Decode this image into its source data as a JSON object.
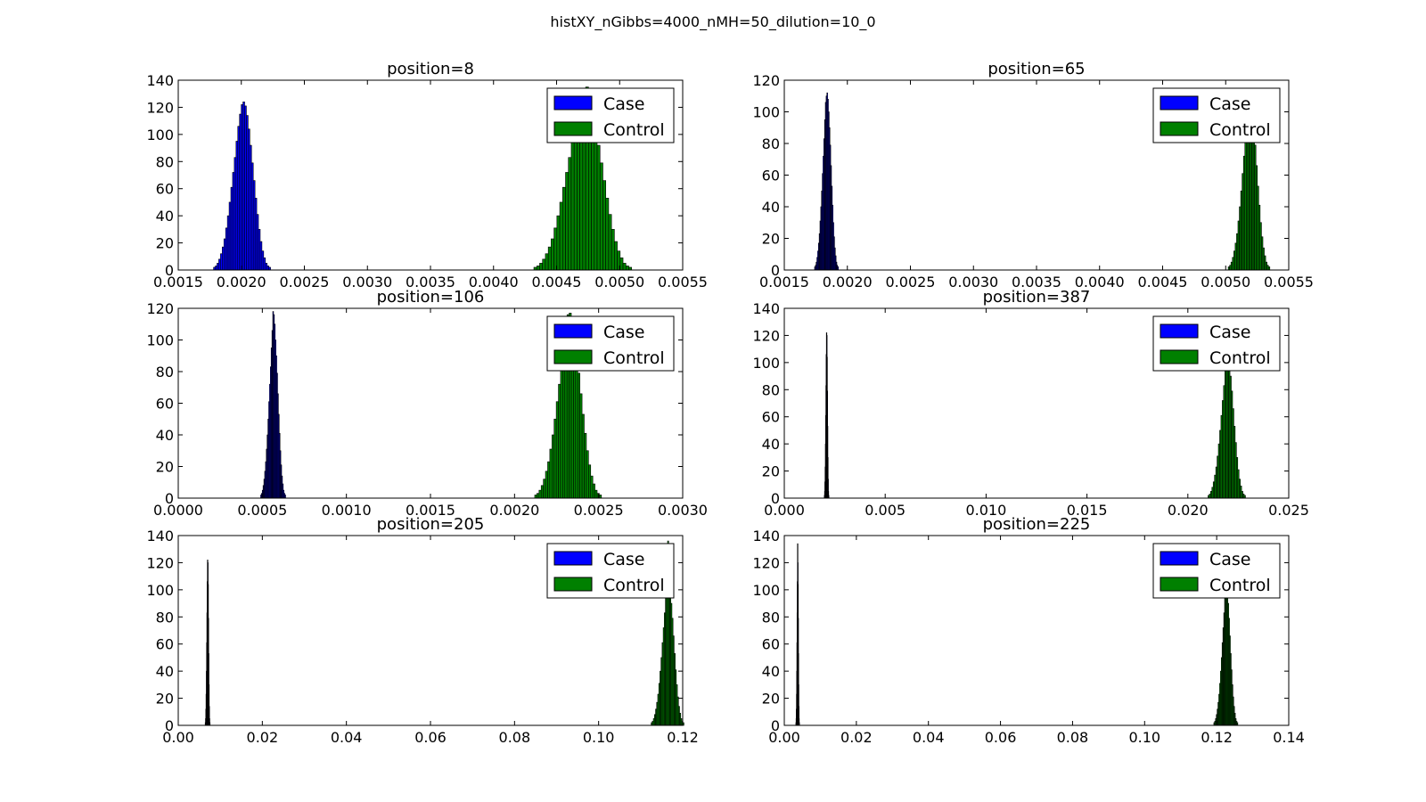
{
  "figure": {
    "title": "histXY_nGibbs=4000_nMH=50_dilution=10_0"
  },
  "colors": {
    "case": "#0000ff",
    "control": "#008000",
    "edge": "#000000"
  },
  "chart_data": [
    {
      "type": "histogram",
      "title": "position=8",
      "xlim": [
        0.0015,
        0.0055
      ],
      "ylim": [
        0,
        140
      ],
      "xticks": [
        0.0015,
        0.002,
        0.0025,
        0.003,
        0.0035,
        0.004,
        0.0045,
        0.005,
        0.0055
      ],
      "xtick_labels": [
        "0.0015",
        "0.0020",
        "0.0025",
        "0.0030",
        "0.0035",
        "0.0040",
        "0.0045",
        "0.0050",
        "0.0055"
      ],
      "yticks": [
        0,
        20,
        40,
        60,
        80,
        100,
        120,
        140
      ],
      "ytick_labels": [
        "0",
        "20",
        "40",
        "60",
        "80",
        "100",
        "120",
        "140"
      ],
      "legend": {
        "placement": "top-right",
        "entries": [
          "Case",
          "Control"
        ]
      },
      "series": [
        {
          "name": "Case",
          "color": "#0000ff",
          "x_start": 0.00178,
          "bin_width": 1.37e-05,
          "counts": [
            2,
            3,
            5,
            8,
            12,
            17,
            23,
            31,
            40,
            50,
            61,
            72,
            83,
            95,
            106,
            115,
            122,
            124,
            121,
            114,
            104,
            92,
            79,
            66,
            53,
            41,
            30,
            21,
            14,
            9,
            5,
            3,
            2
          ]
        },
        {
          "name": "Control",
          "color": "#008000",
          "x_start": 0.00432,
          "bin_width": 2.28e-05,
          "counts": [
            2,
            3,
            5,
            8,
            12,
            17,
            23,
            31,
            40,
            50,
            61,
            72,
            83,
            95,
            106,
            115,
            122,
            124,
            135,
            120,
            114,
            104,
            92,
            79,
            66,
            53,
            41,
            30,
            21,
            14,
            9,
            5,
            3,
            2
          ]
        }
      ]
    },
    {
      "type": "histogram",
      "title": "position=65",
      "xlim": [
        0.0015,
        0.0055
      ],
      "ylim": [
        0,
        120
      ],
      "xticks": [
        0.0015,
        0.002,
        0.0025,
        0.003,
        0.0035,
        0.004,
        0.0045,
        0.005,
        0.0055
      ],
      "xtick_labels": [
        "0.0015",
        "0.0020",
        "0.0025",
        "0.0030",
        "0.0035",
        "0.0040",
        "0.0045",
        "0.0050",
        "0.0055"
      ],
      "yticks": [
        0,
        20,
        40,
        60,
        80,
        100,
        120
      ],
      "ytick_labels": [
        "0",
        "20",
        "40",
        "60",
        "80",
        "100",
        "120"
      ],
      "legend": {
        "placement": "top-right",
        "entries": [
          "Case",
          "Control"
        ]
      },
      "series": [
        {
          "name": "Case",
          "color": "#0000ff",
          "x_start": 0.00174,
          "bin_width": 6.1e-06,
          "counts": [
            2,
            3,
            5,
            8,
            12,
            17,
            23,
            31,
            40,
            50,
            61,
            72,
            83,
            95,
            106,
            110,
            112,
            108,
            100,
            90,
            79,
            66,
            53,
            41,
            30,
            21,
            14,
            9,
            5,
            3,
            2
          ]
        },
        {
          "name": "Control",
          "color": "#008000",
          "x_start": 0.00502,
          "bin_width": 1.1e-05,
          "counts": [
            2,
            3,
            5,
            8,
            12,
            17,
            23,
            31,
            40,
            50,
            61,
            72,
            83,
            95,
            106,
            108,
            105,
            98,
            90,
            79,
            66,
            53,
            41,
            30,
            21,
            14,
            9,
            5,
            3,
            2
          ]
        }
      ]
    },
    {
      "type": "histogram",
      "title": "position=106",
      "xlim": [
        0.0,
        0.003
      ],
      "ylim": [
        0,
        120
      ],
      "xticks": [
        0.0,
        0.0005,
        0.001,
        0.0015,
        0.002,
        0.0025,
        0.003
      ],
      "xtick_labels": [
        "0.0000",
        "0.0005",
        "0.0010",
        "0.0015",
        "0.0020",
        "0.0025",
        "0.0030"
      ],
      "yticks": [
        0,
        20,
        40,
        60,
        80,
        100,
        120
      ],
      "ytick_labels": [
        "0",
        "20",
        "40",
        "60",
        "80",
        "100",
        "120"
      ],
      "legend": {
        "placement": "top-right",
        "entries": [
          "Case",
          "Control"
        ]
      },
      "series": [
        {
          "name": "Case",
          "color": "#0000ff",
          "x_start": 0.00049,
          "bin_width": 4.8e-06,
          "counts": [
            2,
            3,
            5,
            8,
            12,
            17,
            23,
            31,
            40,
            50,
            61,
            72,
            83,
            95,
            106,
            118,
            116,
            110,
            100,
            90,
            79,
            66,
            53,
            41,
            30,
            21,
            14,
            9,
            5,
            3,
            2
          ]
        },
        {
          "name": "Control",
          "color": "#008000",
          "x_start": 0.00212,
          "bin_width": 1.28e-05,
          "counts": [
            2,
            3,
            5,
            8,
            12,
            17,
            23,
            31,
            40,
            50,
            61,
            72,
            83,
            95,
            106,
            116,
            117,
            112,
            100,
            90,
            79,
            66,
            53,
            41,
            30,
            21,
            14,
            9,
            5,
            3,
            2
          ]
        }
      ]
    },
    {
      "type": "histogram",
      "title": "position=387",
      "xlim": [
        0.0,
        0.025
      ],
      "ylim": [
        0,
        140
      ],
      "xticks": [
        0.0,
        0.005,
        0.01,
        0.015,
        0.02,
        0.025
      ],
      "xtick_labels": [
        "0.000",
        "0.005",
        "0.010",
        "0.015",
        "0.020",
        "0.025"
      ],
      "yticks": [
        0,
        20,
        40,
        60,
        80,
        100,
        120,
        140
      ],
      "ytick_labels": [
        "0",
        "20",
        "40",
        "60",
        "80",
        "100",
        "120",
        "140"
      ],
      "legend": {
        "placement": "top-right",
        "entries": [
          "Case",
          "Control"
        ]
      },
      "series": [
        {
          "name": "Case",
          "color": "#0000ff",
          "x_start": 0.00198,
          "bin_width": 1.3e-05,
          "counts": [
            2,
            5,
            12,
            23,
            40,
            61,
            83,
            106,
            122,
            120,
            104,
            79,
            53,
            30,
            14,
            5,
            2
          ]
        },
        {
          "name": "Control",
          "color": "#008000",
          "x_start": 0.021,
          "bin_width": 6.4e-05,
          "counts": [
            2,
            3,
            5,
            8,
            12,
            17,
            23,
            31,
            40,
            50,
            61,
            72,
            83,
            95,
            100,
            102,
            98,
            90,
            79,
            66,
            53,
            41,
            30,
            21,
            14,
            9,
            5,
            3,
            2
          ]
        }
      ]
    },
    {
      "type": "histogram",
      "title": "position=205",
      "xlim": [
        0.0,
        0.12
      ],
      "ylim": [
        0,
        140
      ],
      "xticks": [
        0.0,
        0.02,
        0.04,
        0.06,
        0.08,
        0.1,
        0.12
      ],
      "xtick_labels": [
        "0.00",
        "0.02",
        "0.04",
        "0.06",
        "0.08",
        "0.10",
        "0.12"
      ],
      "yticks": [
        0,
        20,
        40,
        60,
        80,
        100,
        120,
        140
      ],
      "ytick_labels": [
        "0",
        "20",
        "40",
        "60",
        "80",
        "100",
        "120",
        "140"
      ],
      "legend": {
        "placement": "top-right",
        "entries": [
          "Case",
          "Control"
        ]
      },
      "series": [
        {
          "name": "Case",
          "color": "#0000ff",
          "x_start": 0.0064,
          "bin_width": 6.6e-05,
          "counts": [
            2,
            5,
            12,
            23,
            40,
            61,
            83,
            106,
            122,
            120,
            104,
            79,
            53,
            30,
            14,
            5,
            2
          ]
        },
        {
          "name": "Control",
          "color": "#008000",
          "x_start": 0.1125,
          "bin_width": 0.00026,
          "counts": [
            2,
            3,
            5,
            8,
            12,
            17,
            23,
            31,
            40,
            50,
            61,
            72,
            83,
            95,
            106,
            136,
            110,
            100,
            90,
            79,
            66,
            53,
            41,
            30,
            21,
            14,
            9,
            5,
            3,
            2
          ]
        }
      ]
    },
    {
      "type": "histogram",
      "title": "position=225",
      "xlim": [
        0.0,
        0.14
      ],
      "ylim": [
        0,
        140
      ],
      "xticks": [
        0.0,
        0.02,
        0.04,
        0.06,
        0.08,
        0.1,
        0.12,
        0.14
      ],
      "xtick_labels": [
        "0.00",
        "0.02",
        "0.04",
        "0.06",
        "0.08",
        "0.10",
        "0.12",
        "0.14"
      ],
      "yticks": [
        0,
        20,
        40,
        60,
        80,
        100,
        120,
        140
      ],
      "ytick_labels": [
        "0",
        "20",
        "40",
        "60",
        "80",
        "100",
        "120",
        "140"
      ],
      "legend": {
        "placement": "top-right",
        "entries": [
          "Case",
          "Control"
        ]
      },
      "series": [
        {
          "name": "Case",
          "color": "#0000ff",
          "x_start": 0.0032,
          "bin_width": 5.5e-05,
          "counts": [
            2,
            5,
            12,
            23,
            40,
            61,
            83,
            106,
            134,
            120,
            104,
            79,
            53,
            30,
            14,
            5,
            2
          ]
        },
        {
          "name": "Control",
          "color": "#008000",
          "x_start": 0.1192,
          "bin_width": 0.00023,
          "counts": [
            2,
            3,
            5,
            8,
            12,
            17,
            23,
            31,
            40,
            50,
            61,
            72,
            83,
            95,
            98,
            100,
            96,
            90,
            79,
            66,
            53,
            41,
            30,
            21,
            14,
            9,
            5,
            3,
            2
          ]
        }
      ]
    }
  ]
}
